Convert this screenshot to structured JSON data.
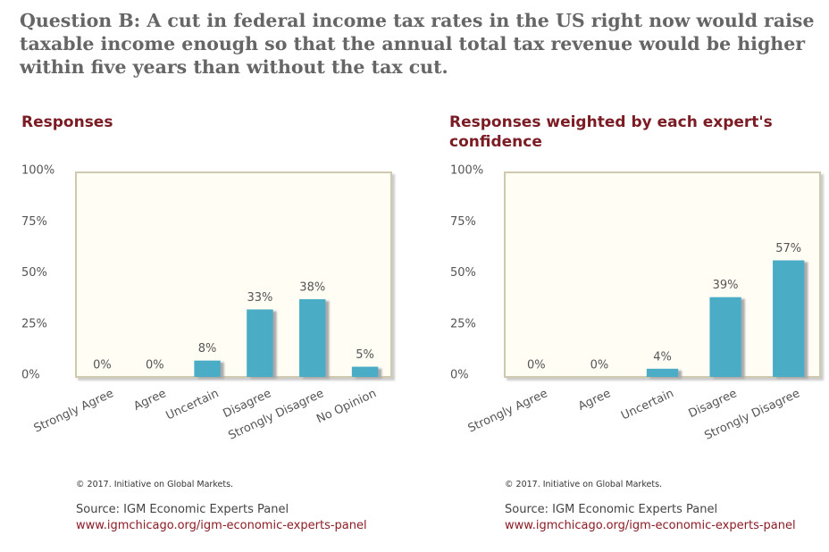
{
  "question": "Question B: A cut in federal income tax rates in the US right now would raise taxable income enough so that the annual total tax revenue would be higher within five years than without the tax cut.",
  "chart_data": [
    {
      "type": "bar",
      "title": "Responses",
      "categories": [
        "Strongly Agree",
        "Agree",
        "Uncertain",
        "Disagree",
        "Strongly Disagree",
        "No Opinion"
      ],
      "values": [
        0,
        0,
        8,
        33,
        38,
        5
      ],
      "value_labels": [
        "0%",
        "0%",
        "8%",
        "33%",
        "38%",
        "5%"
      ],
      "color": "#4bacc6",
      "ylim": [
        0,
        100
      ],
      "yticks": [
        {
          "value": 0,
          "label": "0%"
        },
        {
          "value": 25,
          "label": "25%"
        },
        {
          "value": 50,
          "label": "50%"
        },
        {
          "value": 75,
          "label": "75%"
        },
        {
          "value": 100,
          "label": "100%"
        }
      ],
      "grid": false,
      "copyright": "© 2017. Initiative on Global Markets.",
      "source": "Source: IGM Economic Experts Panel",
      "url": "www.igmchicago.org/igm-economic-experts-panel"
    },
    {
      "type": "bar",
      "title": "Responses weighted by each expert's confidence",
      "categories": [
        "Strongly Agree",
        "Agree",
        "Uncertain",
        "Disagree",
        "Strongly Disagree"
      ],
      "values": [
        0,
        0,
        4,
        39,
        57
      ],
      "value_labels": [
        "0%",
        "0%",
        "4%",
        "39%",
        "57%"
      ],
      "color": "#4bacc6",
      "ylim": [
        0,
        100
      ],
      "yticks": [
        {
          "value": 0,
          "label": "0%"
        },
        {
          "value": 25,
          "label": "25%"
        },
        {
          "value": 50,
          "label": "50%"
        },
        {
          "value": 75,
          "label": "75%"
        },
        {
          "value": 100,
          "label": "100%"
        }
      ],
      "grid": false,
      "copyright": "© 2017. Initiative on Global Markets.",
      "source": "Source: IGM Economic Experts Panel",
      "url": "www.igmchicago.org/igm-economic-experts-panel"
    }
  ]
}
